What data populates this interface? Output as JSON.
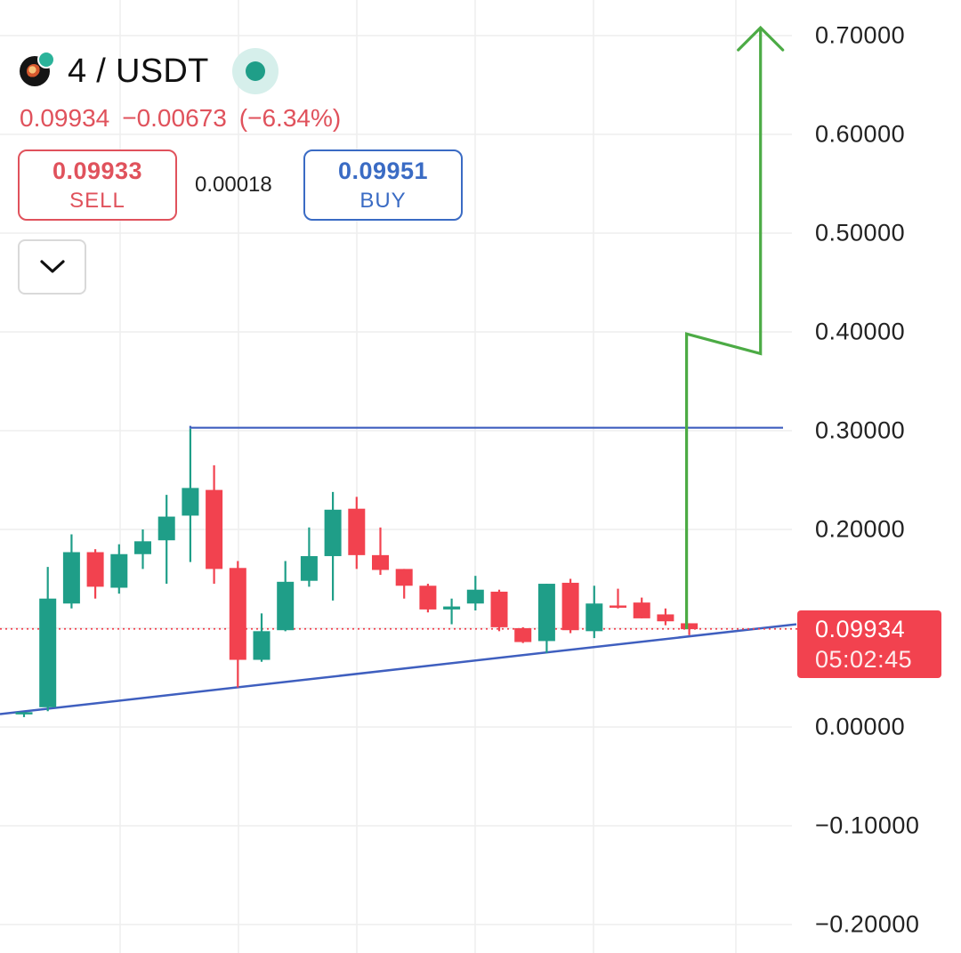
{
  "symbol": {
    "logo_icon": "coin-logo-icon",
    "name": "4 / USDT",
    "status_icon": "market-open-dot-icon",
    "status_color": "#1f9e88"
  },
  "quote": {
    "last": "0.09934",
    "change": "−0.00673",
    "change_pct": "(−6.34%)",
    "color": "#e0525c"
  },
  "trade": {
    "sell_price": "0.09933",
    "sell_label": "SELL",
    "spread": "0.00018",
    "buy_price": "0.09951",
    "buy_label": "BUY",
    "collapse_icon": "chevron-down-icon"
  },
  "current_price_tag": {
    "price": "0.09934",
    "countdown": "05:02:45",
    "color": "#f2424f"
  },
  "colors": {
    "up": "#1f9e88",
    "down": "#f2424f",
    "trendline": "#3f5fbf",
    "projection": "#4cab45",
    "grid": "#eeeeee"
  },
  "chart_data": {
    "type": "candlestick",
    "y_axis": {
      "labels": [
        "0.70000",
        "0.60000",
        "0.50000",
        "0.40000",
        "0.30000",
        "0.20000",
        "0.00000",
        "−0.10000",
        "−0.20000"
      ],
      "ylim": [
        -0.21,
        0.71
      ]
    },
    "grid": true,
    "candles": [
      {
        "o": 0.015,
        "h": 0.015,
        "l": 0.01,
        "c": 0.015
      },
      {
        "o": 0.02,
        "h": 0.162,
        "l": 0.016,
        "c": 0.13
      },
      {
        "o": 0.125,
        "h": 0.195,
        "l": 0.12,
        "c": 0.177
      },
      {
        "o": 0.177,
        "h": 0.18,
        "l": 0.13,
        "c": 0.142
      },
      {
        "o": 0.141,
        "h": 0.185,
        "l": 0.135,
        "c": 0.175
      },
      {
        "o": 0.175,
        "h": 0.2,
        "l": 0.16,
        "c": 0.188
      },
      {
        "o": 0.189,
        "h": 0.235,
        "l": 0.145,
        "c": 0.213
      },
      {
        "o": 0.214,
        "h": 0.302,
        "l": 0.167,
        "c": 0.242
      },
      {
        "o": 0.24,
        "h": 0.265,
        "l": 0.145,
        "c": 0.16
      },
      {
        "o": 0.161,
        "h": 0.168,
        "l": 0.04,
        "c": 0.068
      },
      {
        "o": 0.068,
        "h": 0.115,
        "l": 0.066,
        "c": 0.097
      },
      {
        "o": 0.098,
        "h": 0.168,
        "l": 0.097,
        "c": 0.147
      },
      {
        "o": 0.148,
        "h": 0.202,
        "l": 0.142,
        "c": 0.173
      },
      {
        "o": 0.173,
        "h": 0.238,
        "l": 0.128,
        "c": 0.22
      },
      {
        "o": 0.221,
        "h": 0.233,
        "l": 0.16,
        "c": 0.174
      },
      {
        "o": 0.174,
        "h": 0.202,
        "l": 0.154,
        "c": 0.159
      },
      {
        "o": 0.16,
        "h": 0.16,
        "l": 0.13,
        "c": 0.143
      },
      {
        "o": 0.143,
        "h": 0.145,
        "l": 0.116,
        "c": 0.119
      },
      {
        "o": 0.119,
        "h": 0.13,
        "l": 0.104,
        "c": 0.122
      },
      {
        "o": 0.125,
        "h": 0.153,
        "l": 0.118,
        "c": 0.139
      },
      {
        "o": 0.137,
        "h": 0.139,
        "l": 0.097,
        "c": 0.101
      },
      {
        "o": 0.1,
        "h": 0.101,
        "l": 0.085,
        "c": 0.086
      },
      {
        "o": 0.087,
        "h": 0.145,
        "l": 0.075,
        "c": 0.145
      },
      {
        "o": 0.146,
        "h": 0.15,
        "l": 0.095,
        "c": 0.098
      },
      {
        "o": 0.097,
        "h": 0.143,
        "l": 0.09,
        "c": 0.125
      },
      {
        "o": 0.123,
        "h": 0.14,
        "l": 0.12,
        "c": 0.122
      },
      {
        "o": 0.126,
        "h": 0.131,
        "l": 0.11,
        "c": 0.11
      },
      {
        "o": 0.114,
        "h": 0.12,
        "l": 0.103,
        "c": 0.107
      },
      {
        "o": 0.105,
        "h": 0.105,
        "l": 0.093,
        "c": 0.099
      }
    ],
    "current_price": 0.09934,
    "annotations": {
      "resistance_level": 0.303,
      "support_trendline": {
        "from_candle": -1,
        "from_price": 0.013,
        "to_price": 0.104
      },
      "projection_path": [
        {
          "candle": 28,
          "price": 0.099
        },
        {
          "candle": 28,
          "price": 0.398
        },
        {
          "candle": 31,
          "price": 0.378
        },
        {
          "candle": 31,
          "price": 0.708
        }
      ]
    }
  }
}
